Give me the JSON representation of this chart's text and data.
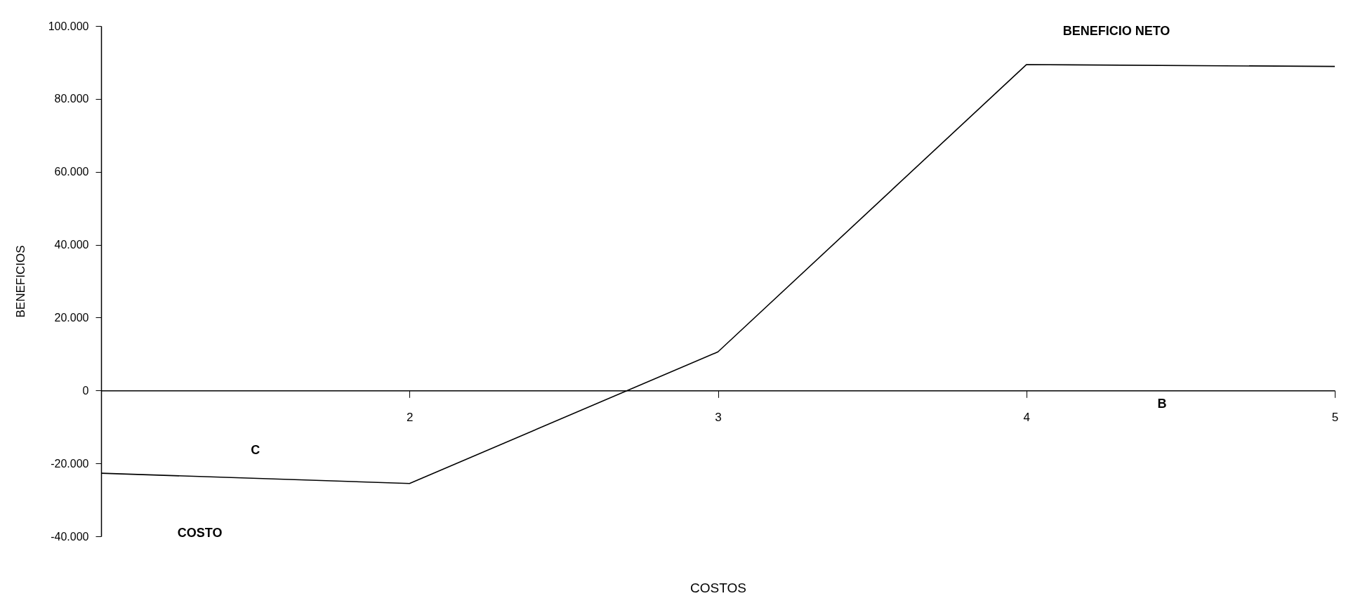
{
  "chart_data": {
    "type": "line",
    "xlabel": "COSTOS",
    "ylabel": "BENEFICIOS",
    "xlim": [
      1,
      5
    ],
    "xticks": [
      2,
      3,
      4,
      5
    ],
    "ylim": [
      -40000,
      100000
    ],
    "yticks": [
      {
        "value": -40000,
        "label": "-40.000"
      },
      {
        "value": -20000,
        "label": "-20.000"
      },
      0,
      {
        "value": 20000,
        "label": "20.000"
      },
      {
        "value": 40000,
        "label": "40.000"
      },
      {
        "value": 60000,
        "label": "60.000"
      },
      {
        "value": 80000,
        "label": "80.000"
      },
      {
        "value": 100000,
        "label": "100.000"
      }
    ],
    "series": [
      {
        "color": "#000000",
        "x": [
          1,
          2,
          3,
          4,
          5
        ],
        "values": [
          -22700,
          -25500,
          10600,
          89400,
          88900
        ]
      }
    ],
    "annotations": [
      "BENEFICIO NETO",
      "C",
      "COSTO",
      "B"
    ]
  }
}
